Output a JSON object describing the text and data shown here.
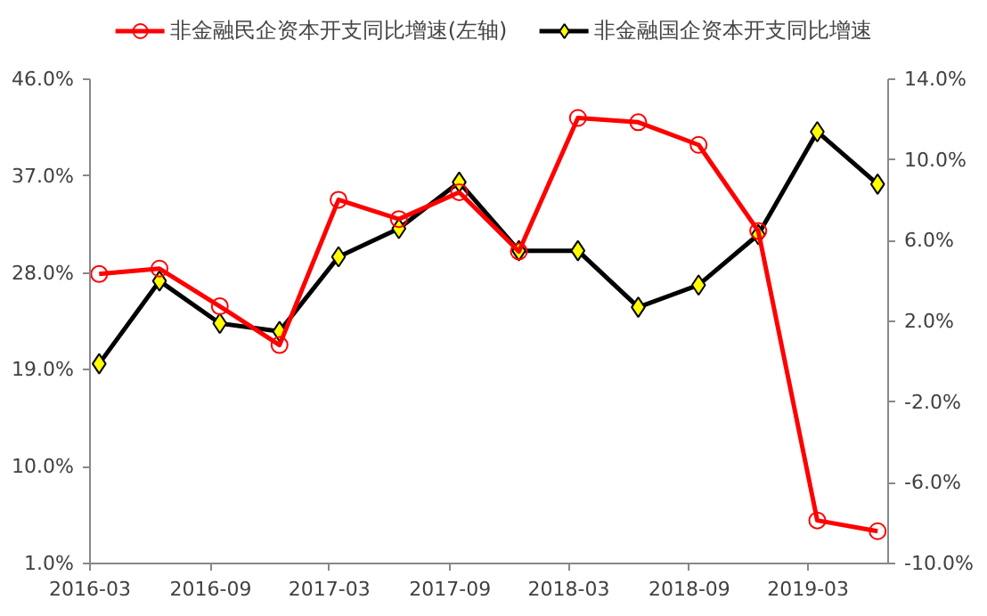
{
  "chart_data": {
    "type": "line",
    "x": [
      "2016-03-15",
      "2016-06-15",
      "2016-09-15",
      "2016-12-15",
      "2017-03-15",
      "2017-06-15",
      "2017-09-15",
      "2017-12-15",
      "2018-03-15",
      "2018-06-15",
      "2018-09-15",
      "2018-12-15",
      "2019-03-15",
      "2019-06-15"
    ],
    "series": [
      {
        "name": "非金融民企资本开支同比增速(左轴)",
        "color": "#ff0000",
        "marker": "circle",
        "values": [
          27.9,
          28.4,
          24.9,
          21.3,
          34.8,
          33.0,
          35.5,
          30.0,
          42.4,
          42.0,
          39.9,
          31.9,
          5.0,
          4.0
        ]
      },
      {
        "name": "非金融国企资本开支同比增速",
        "color": "#000000",
        "marker": "diamond",
        "axis": "y2",
        "values": [
          -0.1,
          4.0,
          1.9,
          1.5,
          5.2,
          6.6,
          8.9,
          5.5,
          5.5,
          2.7,
          3.8,
          6.3,
          11.4,
          8.8
        ]
      }
    ],
    "xlim": [
      "2016-03",
      "2019-07"
    ],
    "xticks": [
      "2016-03",
      "2016-09",
      "2017-03",
      "2017-09",
      "2018-03",
      "2018-09",
      "2019-03"
    ],
    "ylim": [
      1,
      46
    ],
    "yticks": [
      {
        "value": 1,
        "label": "1.0%"
      },
      {
        "value": 10,
        "label": "10.0%"
      },
      {
        "value": 19,
        "label": "19.0%"
      },
      {
        "value": 28,
        "label": "28.0%"
      },
      {
        "value": 37,
        "label": "37.0%"
      },
      {
        "value": 46,
        "label": "46.0%"
      }
    ],
    "y2lim": [
      -10,
      14
    ],
    "y2ticks": [
      {
        "value": -10,
        "label": "-10.0%"
      },
      {
        "value": -6,
        "label": "-6.0%"
      },
      {
        "value": -2,
        "label": "-2.0%"
      },
      {
        "value": 2,
        "label": "2.0%"
      },
      {
        "value": 6,
        "label": "6.0%"
      },
      {
        "value": 10,
        "label": "10.0%"
      },
      {
        "value": 14,
        "label": "14.0%"
      }
    ],
    "grid": false,
    "legend": "top"
  }
}
